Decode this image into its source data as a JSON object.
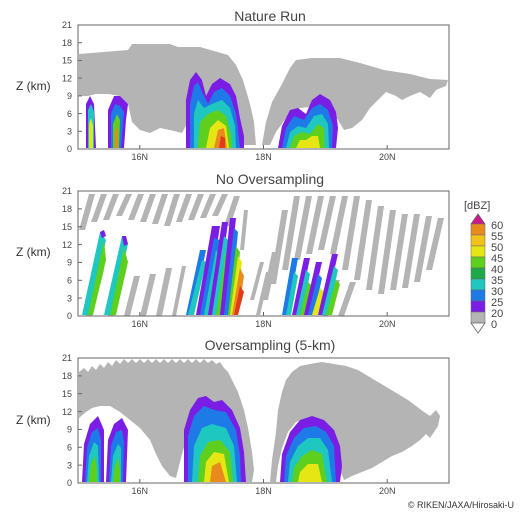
{
  "chart_data": {
    "type": "heatmap",
    "units": "[dBZ]",
    "colorbar": {
      "labels": [
        "60",
        "55",
        "50",
        "45",
        "40",
        "35",
        "30",
        "25",
        "20",
        "0"
      ],
      "colors": [
        "#d0148c",
        "#e88a1e",
        "#f0c21a",
        "#e6e614",
        "#5fcf1e",
        "#1fa84a",
        "#1ec8c0",
        "#1e7ae6",
        "#7a1ee6",
        "#b4b4b4"
      ]
    },
    "panels": [
      {
        "title": "Nature Run",
        "ylabel": "Z (km)",
        "yticks": [
          "0",
          "3",
          "6",
          "9",
          "12",
          "15",
          "18",
          "21"
        ],
        "xticks": [
          "16N",
          "18N",
          "20N"
        ],
        "xlim": [
          15.0,
          21.0
        ],
        "ylim": [
          0,
          21
        ]
      },
      {
        "title": "No Oversampling",
        "ylabel": "Z (km)",
        "yticks": [
          "0",
          "3",
          "6",
          "9",
          "12",
          "15",
          "18",
          "21"
        ],
        "xticks": [
          "16N",
          "18N",
          "20N"
        ],
        "xlim": [
          15.0,
          21.0
        ],
        "ylim": [
          0,
          21
        ]
      },
      {
        "title": "Oversampling (5-km)",
        "ylabel": "Z (km)",
        "yticks": [
          "0",
          "3",
          "6",
          "9",
          "12",
          "15",
          "18",
          "21"
        ],
        "xticks": [
          "16N",
          "18N",
          "20N"
        ],
        "xlim": [
          15.0,
          21.0
        ],
        "ylim": [
          0,
          21
        ]
      }
    ]
  },
  "copyright": "© RIKEN/JAXA/Hirosaki-U"
}
